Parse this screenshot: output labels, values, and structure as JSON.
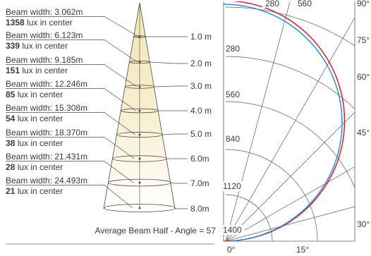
{
  "cone": {
    "levels": [
      {
        "beam_width": "Beam width: 3.062m",
        "lux_value": "1358",
        "lux_suffix": " lux in center",
        "distance": "1.0 m"
      },
      {
        "beam_width": "Beam width: 6.123m",
        "lux_value": "339",
        "lux_suffix": " lux in center",
        "distance": "2.0 m"
      },
      {
        "beam_width": "Beam width: 9.185m",
        "lux_value": "151",
        "lux_suffix": " lux in center",
        "distance": "3.0 m"
      },
      {
        "beam_width": "Beam width: 12.246m",
        "lux_value": "85",
        "lux_suffix": " lux in center",
        "distance": "4.0 m"
      },
      {
        "beam_width": "Beam width: 15.308m",
        "lux_value": "54",
        "lux_suffix": " lux in center",
        "distance": "5.0 m"
      },
      {
        "beam_width": "Beam width: 18.370m",
        "lux_value": "38",
        "lux_suffix": " lux in center",
        "distance": "6.0m"
      },
      {
        "beam_width": "Beam width: 21.431m",
        "lux_value": "28",
        "lux_suffix": " lux in center",
        "distance": "7.0m"
      },
      {
        "beam_width": "Beam width: 24.493m",
        "lux_value": "21",
        "lux_suffix": " lux in center",
        "distance": "8.0m"
      }
    ],
    "average_label": "Average Beam Half - Angle = 57"
  },
  "polar": {
    "radial_labels_top": [
      "280",
      "560"
    ],
    "radial_labels_left": [
      "280",
      "560",
      "840",
      "1120",
      "1400"
    ],
    "angle_labels": [
      "90°",
      "75°",
      "60°",
      "45°",
      "30°"
    ],
    "bottom_labels": [
      "0°",
      "15°"
    ],
    "colors": {
      "curve_red": "#d8202a",
      "curve_blue": "#2a8ed8",
      "grid": "#5a5a5a"
    }
  }
}
